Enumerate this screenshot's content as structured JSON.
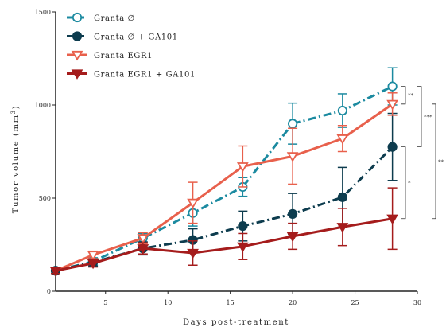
{
  "chart_data": {
    "type": "line",
    "xlabel": "Days post-treatment",
    "ylabel": "Tumor volume (mm",
    "ylabel_sup": "3",
    "ylabel_close": ")",
    "xlim": [
      1,
      30
    ],
    "ylim": [
      0,
      1500
    ],
    "x_ticks": [
      5,
      10,
      15,
      20,
      25,
      30
    ],
    "y_ticks": [
      0,
      500,
      1000,
      1500
    ],
    "grid": false,
    "legend_position": "top-left",
    "series": [
      {
        "name": "Granta ∅",
        "color": "#1b8aa0",
        "line_style": "dash-dot",
        "marker": "open-circle",
        "x": [
          1,
          4,
          8,
          12,
          16,
          20,
          24,
          28
        ],
        "y": [
          110,
          160,
          285,
          420,
          560,
          900,
          970,
          1100
        ],
        "err": [
          15,
          20,
          25,
          70,
          50,
          110,
          90,
          100
        ]
      },
      {
        "name": "Granta ∅ + GA101",
        "color": "#0d3c4e",
        "line_style": "dash-dot",
        "marker": "filled-circle",
        "x": [
          1,
          4,
          8,
          12,
          16,
          20,
          24,
          28
        ],
        "y": [
          110,
          155,
          230,
          275,
          350,
          415,
          505,
          775
        ],
        "err": [
          15,
          20,
          35,
          60,
          80,
          110,
          160,
          180
        ]
      },
      {
        "name": "Granta EGR1",
        "color": "#e8604c",
        "line_style": "solid",
        "marker": "open-triangle-down",
        "x": [
          1,
          4,
          8,
          12,
          16,
          20,
          24,
          28
        ],
        "y": [
          110,
          195,
          285,
          475,
          670,
          725,
          820,
          1005
        ],
        "err": [
          15,
          20,
          30,
          110,
          110,
          150,
          70,
          60
        ]
      },
      {
        "name": "Granta EGR1 + GA101",
        "color": "#a51c1c",
        "line_style": "solid",
        "marker": "filled-triangle-down",
        "x": [
          1,
          4,
          8,
          12,
          16,
          20,
          24,
          28
        ],
        "y": [
          110,
          150,
          230,
          205,
          240,
          295,
          345,
          390
        ],
        "err": [
          15,
          20,
          30,
          65,
          70,
          70,
          100,
          165
        ]
      }
    ],
    "annotations": [
      {
        "label": "**",
        "from_series": 0,
        "to_series": 2
      },
      {
        "label": "***",
        "from_series": 0,
        "to_series": 1
      },
      {
        "label": "*",
        "from_series": 1,
        "to_series": 3
      },
      {
        "label": "**",
        "from_series": 2,
        "to_series": 3
      }
    ]
  }
}
